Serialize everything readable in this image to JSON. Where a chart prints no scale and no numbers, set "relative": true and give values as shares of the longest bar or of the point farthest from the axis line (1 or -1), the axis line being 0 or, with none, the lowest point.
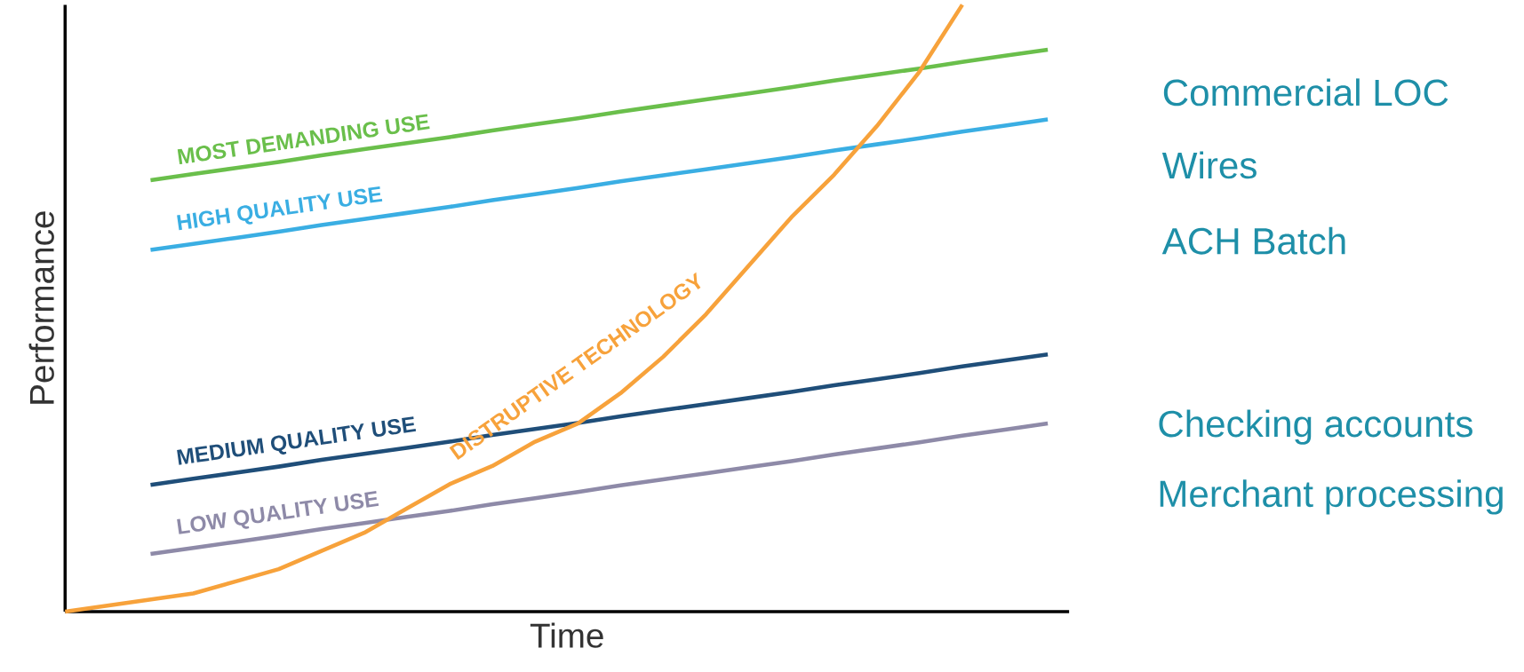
{
  "chart_data": {
    "type": "line",
    "relative": true,
    "xlabel": "Time",
    "ylabel": "Performance",
    "marker": "none",
    "line_style": "solid",
    "categories": [
      null,
      null,
      null,
      null,
      null,
      null,
      null,
      null,
      null,
      null,
      null,
      null,
      null,
      null,
      null,
      null,
      null,
      null,
      null,
      null,
      null,
      null,
      null,
      null
    ],
    "series": [
      {
        "name": "MOST DEMANDING USE",
        "color": "#6abf4b",
        "values": [
          null,
          null,
          0.711,
          0.721,
          0.731,
          0.741,
          0.752,
          0.762,
          0.772,
          0.782,
          0.793,
          0.803,
          0.813,
          0.824,
          0.834,
          0.844,
          0.854,
          0.864,
          0.875,
          0.885,
          0.895,
          0.906,
          0.916,
          0.926
        ]
      },
      {
        "name": "HIGH QUALITY USE",
        "color": "#3aaee3",
        "values": [
          null,
          null,
          0.596,
          0.606,
          0.616,
          0.626,
          0.637,
          0.647,
          0.657,
          0.667,
          0.678,
          0.688,
          0.698,
          0.709,
          0.719,
          0.729,
          0.739,
          0.749,
          0.76,
          0.77,
          0.78,
          0.791,
          0.801,
          0.811
        ]
      },
      {
        "name": "MEDIUM QUALITY USE",
        "color": "#1f4e79",
        "values": [
          null,
          null,
          0.209,
          0.219,
          0.229,
          0.239,
          0.25,
          0.26,
          0.27,
          0.28,
          0.291,
          0.301,
          0.311,
          0.322,
          0.332,
          0.342,
          0.352,
          0.362,
          0.373,
          0.383,
          0.393,
          0.404,
          0.414,
          0.424
        ]
      },
      {
        "name": "LOW QUALITY USE",
        "color": "#8e8aa8",
        "values": [
          null,
          null,
          0.095,
          0.105,
          0.115,
          0.125,
          0.136,
          0.146,
          0.156,
          0.166,
          0.177,
          0.187,
          0.197,
          0.208,
          0.218,
          0.228,
          0.238,
          0.248,
          0.259,
          0.269,
          0.279,
          0.29,
          0.3,
          0.31
        ]
      },
      {
        "name": "DISTRUPTIVE TECHNOLOGY",
        "color": "#f7a23b",
        "values": [
          0,
          0.01,
          0.02,
          0.03,
          0.05,
          0.07,
          0.1,
          0.13,
          0.17,
          0.21,
          0.24,
          0.28,
          0.31,
          0.36,
          0.42,
          0.49,
          0.57,
          0.65,
          0.72,
          0.8,
          0.89,
          1.0,
          null,
          null
        ]
      }
    ],
    "annotations": [
      "Commercial LOC",
      "Wires",
      "ACH Batch",
      "Checking accounts",
      "Merchant processing"
    ]
  }
}
